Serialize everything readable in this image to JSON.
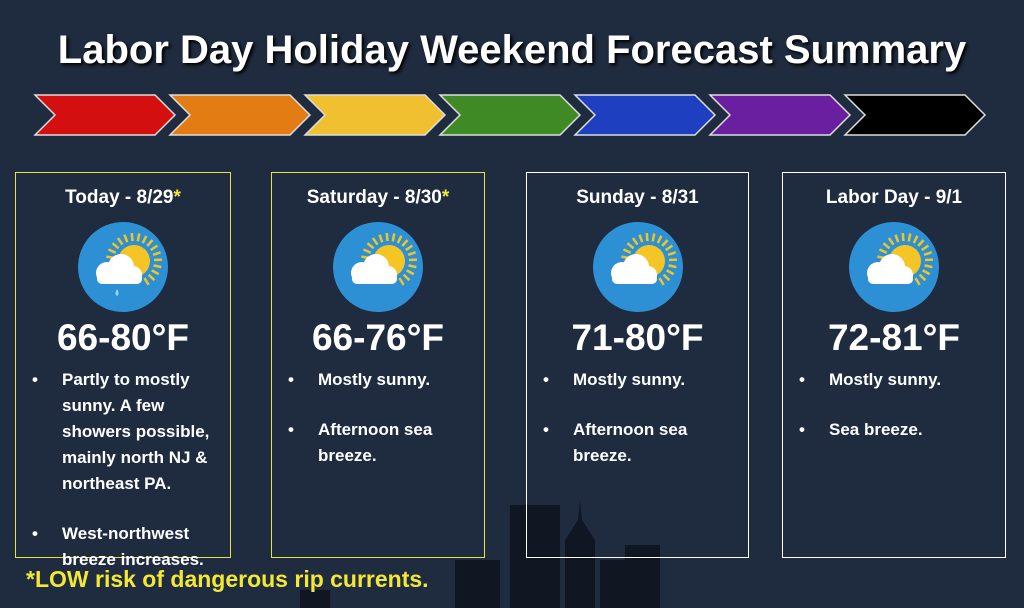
{
  "title": "Labor Day Holiday Weekend Forecast Summary",
  "days": [
    {
      "label": "Today - 8/29",
      "mark": "*",
      "temp": "66-80°F",
      "bullets": [
        "Partly to mostly sunny. A few showers possible, mainly north NJ & northeast PA.",
        "West-northwest breeze increases."
      ]
    },
    {
      "label": "Saturday - 8/30",
      "mark": "*",
      "temp": "66-76°F",
      "bullets": [
        "Mostly sunny.",
        "Afternoon sea breeze."
      ]
    },
    {
      "label": "Sunday - 8/31",
      "temp": "71-80°F",
      "bullets": [
        "Mostly sunny.",
        "Afternoon sea breeze."
      ]
    },
    {
      "label": "Labor Day - 9/1",
      "temp": "72-81°F",
      "bullets": [
        "Mostly sunny.",
        "Sea breeze."
      ]
    }
  ],
  "footnote": "*LOW risk of dangerous rip currents."
}
